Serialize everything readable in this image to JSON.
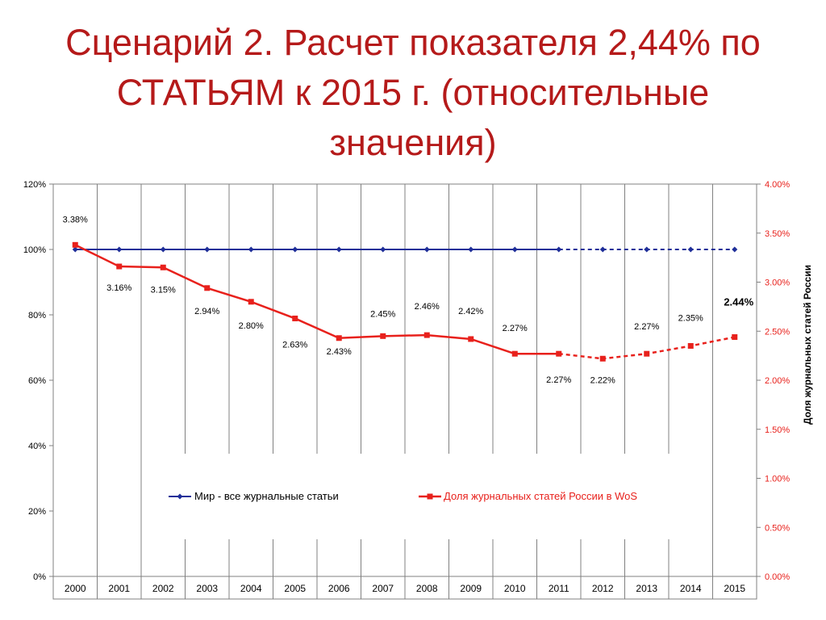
{
  "title_lines": [
    "Сценарий 2. Расчет показателя 2,44% по",
    "СТАТЬЯМ к 2015 г. (относительные",
    "значения)"
  ],
  "colors": {
    "title": "#b51a1a",
    "world": "#1f2f99",
    "russia": "#e8211c",
    "right_axis_text": "#e8211c"
  },
  "chart_data": {
    "type": "line",
    "categories": [
      "2000",
      "2001",
      "2002",
      "2003",
      "2004",
      "2005",
      "2006",
      "2007",
      "2008",
      "2009",
      "2010",
      "2011",
      "2012",
      "2013",
      "2014",
      "2015"
    ],
    "series": [
      {
        "name": "Мир - все журнальные статьи",
        "axis": "left",
        "values": [
          100,
          100,
          100,
          100,
          100,
          100,
          100,
          100,
          100,
          100,
          100,
          100,
          100,
          100,
          100,
          100
        ],
        "solid_until": "2011",
        "dashed_from": "2011",
        "marker": "diamond"
      },
      {
        "name": "Доля журнальных статей России в WoS",
        "axis": "right",
        "values": [
          3.38,
          3.16,
          3.15,
          2.94,
          2.8,
          2.63,
          2.43,
          2.45,
          2.46,
          2.42,
          2.27,
          2.27,
          2.22,
          2.27,
          2.35,
          2.44
        ],
        "labels": [
          "3.38%",
          "3.16%",
          "3.15%",
          "2.94%",
          "2.80%",
          "2.63%",
          "2.43%",
          "2.45%",
          "2.46%",
          "2.42%",
          "2.27%",
          "2.27%",
          "2.22%",
          "2.27%",
          "2.35%",
          "2.44%"
        ],
        "solid_until": "2011",
        "dashed_from": "2011",
        "marker": "square"
      }
    ],
    "y_left": {
      "range": [
        0,
        120
      ],
      "ticks": [
        "0%",
        "20%",
        "40%",
        "60%",
        "80%",
        "100%",
        "120%"
      ]
    },
    "y_right": {
      "range": [
        0,
        4
      ],
      "ticks": [
        "0.00%",
        "0.50%",
        "1.00%",
        "1.50%",
        "2.00%",
        "2.50%",
        "3.00%",
        "3.50%",
        "4.00%"
      ],
      "label": "Доля журнальных статей России"
    },
    "grid": "vertical",
    "legend_position": "bottom-center",
    "highlight_label": "2.44%"
  }
}
